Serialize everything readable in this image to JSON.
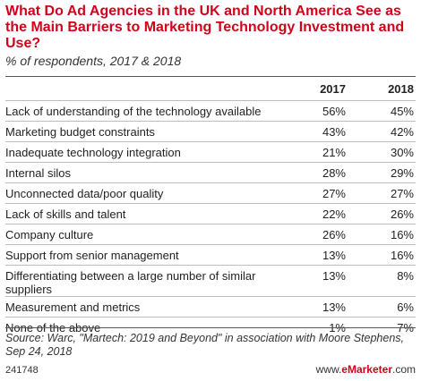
{
  "chart_data": {
    "type": "table",
    "title": "What Do Ad Agencies in the UK and North America See as the Main Barriers to Marketing Technology Investment and Use?",
    "subtitle": "% of respondents, 2017 & 2018",
    "columns": [
      "2017",
      "2018"
    ],
    "rows": [
      {
        "label": "Lack of understanding of the technology available",
        "v2017": "56%",
        "v2018": "45%"
      },
      {
        "label": "Marketing budget constraints",
        "v2017": "43%",
        "v2018": "42%"
      },
      {
        "label": "Inadequate technology integration",
        "v2017": "21%",
        "v2018": "30%"
      },
      {
        "label": "Internal silos",
        "v2017": "28%",
        "v2018": "29%"
      },
      {
        "label": "Unconnected data/poor quality",
        "v2017": "27%",
        "v2018": "27%"
      },
      {
        "label": "Lack of skills and talent",
        "v2017": "22%",
        "v2018": "26%"
      },
      {
        "label": "Company culture",
        "v2017": "26%",
        "v2018": "16%"
      },
      {
        "label": "Support from senior management",
        "v2017": "13%",
        "v2018": "16%"
      },
      {
        "label": "Differentiating between a large number of similar suppliers",
        "v2017": "13%",
        "v2018": "8%"
      },
      {
        "label": "Measurement and metrics",
        "v2017": "13%",
        "v2018": "6%"
      },
      {
        "label": "None of the above",
        "v2017": "1%",
        "v2018": "7%"
      }
    ],
    "source": "Source: Warc, \"Martech: 2019 and Beyond\" in association with Moore Stephens, Sep 24, 2018"
  },
  "footer": {
    "chart_id": "241748",
    "brand_prefix": "www.",
    "brand_name": "eMarketer",
    "brand_suffix": ".com"
  }
}
